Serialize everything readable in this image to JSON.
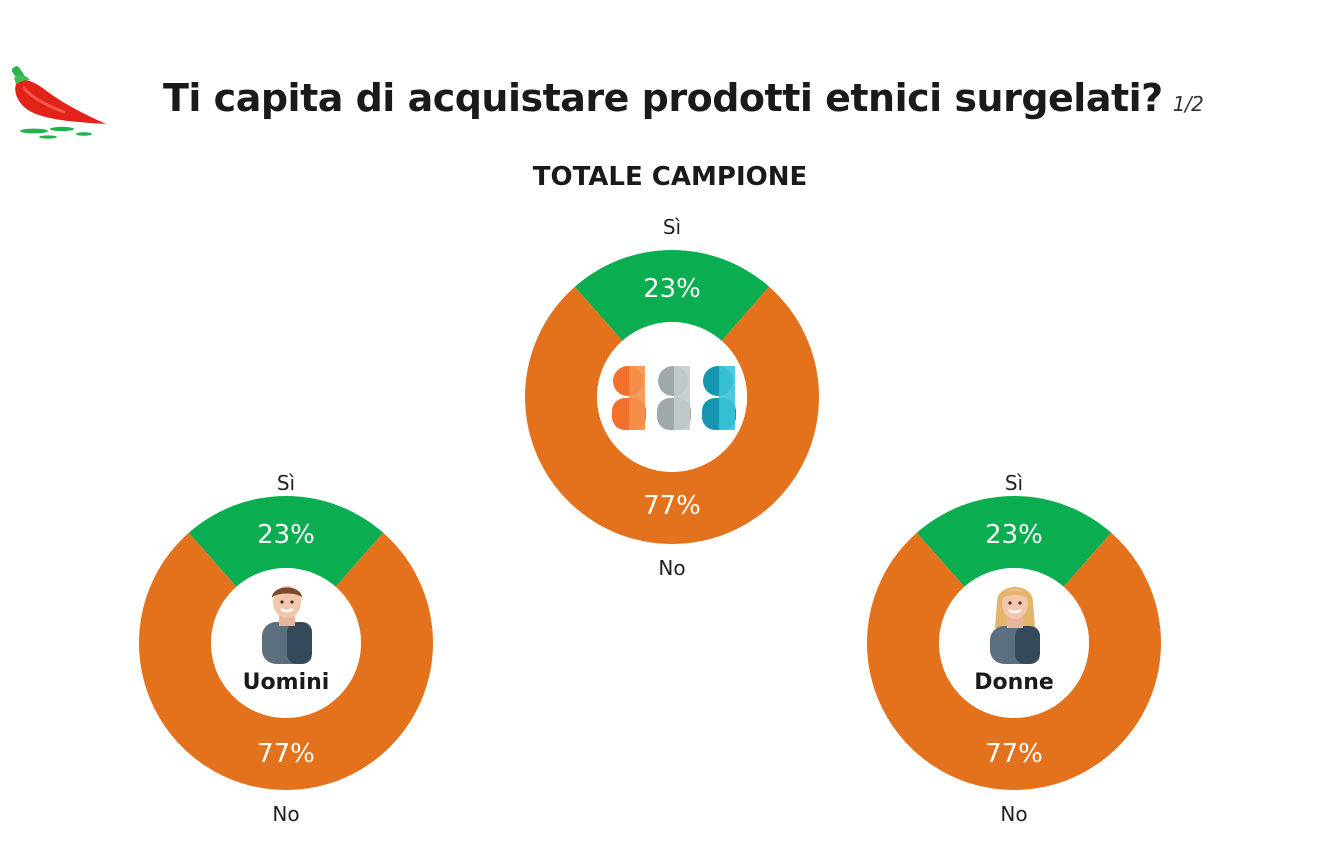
{
  "header": {
    "title": "Ti capita di acquistare prodotti etnici surgelati?",
    "page_indicator": "1/2",
    "logo_icon": "chili-pepper-icon"
  },
  "colors": {
    "yes": "#0aae50",
    "no": "#e4721c",
    "center": "#ffffff"
  },
  "chart_data": [
    {
      "type": "pie",
      "title": "TOTALE CAMPIONE",
      "group_label": "",
      "icon": "group-people-icon",
      "labels": [
        "Sì",
        "No"
      ],
      "values": [
        23,
        77
      ],
      "value_labels": [
        "23%",
        "77%"
      ]
    },
    {
      "type": "pie",
      "title": "",
      "group_label": "Uomini",
      "icon": "man-avatar-icon",
      "labels": [
        "Sì",
        "No"
      ],
      "values": [
        23,
        77
      ],
      "value_labels": [
        "23%",
        "77%"
      ]
    },
    {
      "type": "pie",
      "title": "",
      "group_label": "Donne",
      "icon": "woman-avatar-icon",
      "labels": [
        "Sì",
        "No"
      ],
      "values": [
        23,
        77
      ],
      "value_labels": [
        "23%",
        "77%"
      ]
    }
  ]
}
